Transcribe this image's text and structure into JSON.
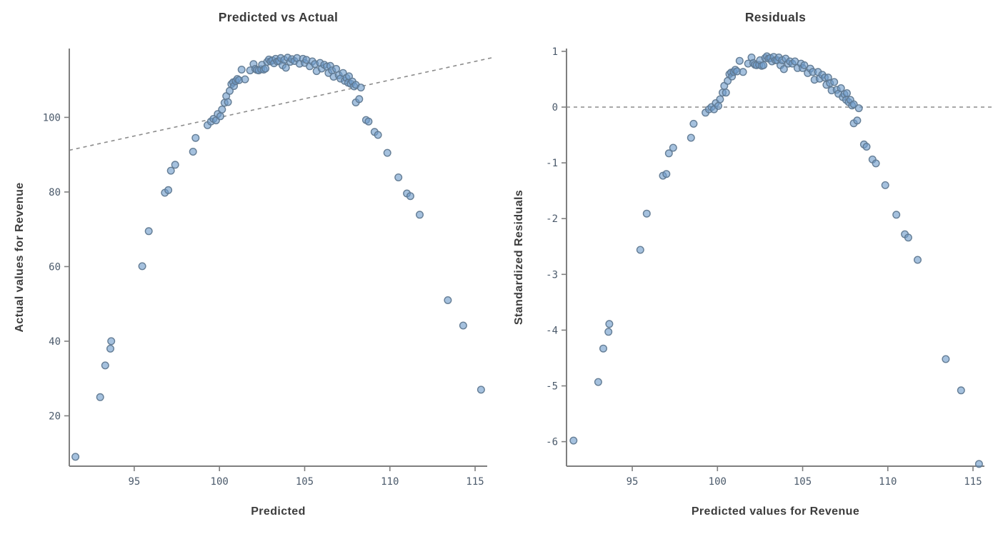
{
  "style": {
    "background": "#ffffff",
    "axis_color": "#7f7f7f",
    "tick_color": "#7f7f7f",
    "ref_line_color": "#8c8c8c",
    "point_fill": "#6d9bc9",
    "point_stroke": "#5f7890",
    "title_color": "#3a3a3a",
    "axis_label_color": "#3d3d3d",
    "tick_label_color": "#4b5a6b"
  },
  "chart_data": [
    {
      "type": "scatter",
      "title": "Predicted vs Actual",
      "xlabel": "Predicted",
      "ylabel": "Actual values for Revenue",
      "x_ticks": [
        95,
        100,
        105,
        110,
        115
      ],
      "y_ticks": [
        20,
        40,
        60,
        80,
        100
      ],
      "xlim": [
        91.19,
        115.71
      ],
      "ylim": [
        6.5,
        118.45
      ],
      "grid": "off",
      "reference_line": {
        "kind": "identity",
        "style": "dashed"
      },
      "points": [
        [
          91.55,
          9.0
        ],
        [
          93.0,
          25.0
        ],
        [
          93.3,
          33.5
        ],
        [
          93.6,
          38.0
        ],
        [
          93.65,
          40.0
        ],
        [
          95.47,
          60.1
        ],
        [
          95.85,
          69.5
        ],
        [
          96.8,
          79.8
        ],
        [
          97.0,
          80.5
        ],
        [
          97.15,
          85.7
        ],
        [
          97.4,
          87.3
        ],
        [
          98.45,
          90.8
        ],
        [
          98.6,
          94.5
        ],
        [
          99.3,
          97.9
        ],
        [
          99.5,
          98.9
        ],
        [
          99.65,
          99.6
        ],
        [
          99.8,
          99.2
        ],
        [
          99.9,
          100.9
        ],
        [
          100.05,
          100.3
        ],
        [
          100.15,
          102.1
        ],
        [
          100.3,
          103.9
        ],
        [
          100.4,
          105.7
        ],
        [
          100.5,
          104.1
        ],
        [
          100.6,
          107.1
        ],
        [
          100.7,
          108.9
        ],
        [
          100.8,
          109.4
        ],
        [
          100.85,
          108.4
        ],
        [
          100.95,
          109.7
        ],
        [
          101.05,
          110.3
        ],
        [
          101.15,
          110.0
        ],
        [
          101.3,
          112.8
        ],
        [
          101.5,
          110.2
        ],
        [
          101.8,
          112.6
        ],
        [
          102.0,
          114.3
        ],
        [
          102.1,
          113.0
        ],
        [
          102.2,
          112.7
        ],
        [
          102.3,
          112.6
        ],
        [
          102.45,
          112.9
        ],
        [
          102.5,
          114.1
        ],
        [
          102.6,
          112.8
        ],
        [
          102.7,
          113.1
        ],
        [
          102.8,
          114.9
        ],
        [
          102.9,
          115.5
        ],
        [
          103.0,
          115.0
        ],
        [
          103.1,
          115.3
        ],
        [
          103.2,
          114.5
        ],
        [
          103.3,
          115.7
        ],
        [
          103.4,
          115.0
        ],
        [
          103.5,
          115.1
        ],
        [
          103.6,
          115.9
        ],
        [
          103.7,
          114.0
        ],
        [
          103.8,
          115.4
        ],
        [
          103.9,
          113.3
        ],
        [
          104.0,
          116.0
        ],
        [
          104.15,
          114.9
        ],
        [
          104.25,
          115.6
        ],
        [
          104.4,
          115.1
        ],
        [
          104.55,
          115.9
        ],
        [
          104.7,
          114.4
        ],
        [
          104.9,
          115.7
        ],
        [
          105.0,
          114.6
        ],
        [
          105.1,
          115.4
        ],
        [
          105.3,
          113.7
        ],
        [
          105.45,
          115.0
        ],
        [
          105.6,
          114.3
        ],
        [
          105.7,
          112.4
        ],
        [
          105.9,
          114.6
        ],
        [
          106.0,
          113.1
        ],
        [
          106.15,
          114.1
        ],
        [
          106.3,
          113.6
        ],
        [
          106.4,
          111.9
        ],
        [
          106.5,
          113.8
        ],
        [
          106.6,
          112.6
        ],
        [
          106.7,
          110.9
        ],
        [
          106.85,
          113.0
        ],
        [
          107.0,
          111.3
        ],
        [
          107.1,
          110.4
        ],
        [
          107.25,
          111.9
        ],
        [
          107.35,
          109.8
        ],
        [
          107.45,
          110.6
        ],
        [
          107.55,
          109.3
        ],
        [
          107.6,
          111.0
        ],
        [
          107.7,
          109.0
        ],
        [
          107.8,
          109.6
        ],
        [
          107.9,
          108.3
        ],
        [
          108.0,
          108.7
        ],
        [
          108.3,
          108.0
        ],
        [
          108.0,
          104.0
        ],
        [
          108.2,
          104.9
        ],
        [
          108.6,
          99.3
        ],
        [
          108.75,
          98.9
        ],
        [
          109.1,
          96.1
        ],
        [
          109.3,
          95.3
        ],
        [
          109.85,
          90.5
        ],
        [
          110.5,
          83.9
        ],
        [
          111.0,
          79.6
        ],
        [
          111.2,
          78.9
        ],
        [
          111.75,
          73.9
        ],
        [
          113.4,
          51.0
        ],
        [
          114.3,
          44.2
        ],
        [
          115.35,
          27.0
        ]
      ]
    },
    {
      "type": "scatter",
      "title": "Residuals",
      "xlabel": "Predicted values for Revenue",
      "ylabel": "Standardized Residuals",
      "x_ticks": [
        95,
        100,
        105,
        110,
        115
      ],
      "y_ticks": [
        1,
        0,
        -1,
        -2,
        -3,
        -4,
        -5,
        -6
      ],
      "xlim": [
        91.14,
        115.67
      ],
      "ylim": [
        -6.44,
        1.05
      ],
      "grid": "off",
      "reference_line": {
        "kind": "horizontal",
        "y": 0,
        "style": "dashed"
      },
      "points": [
        [
          91.55,
          -5.98
        ],
        [
          93.0,
          -4.93
        ],
        [
          93.3,
          -4.33
        ],
        [
          93.6,
          -4.03
        ],
        [
          93.65,
          -3.89
        ],
        [
          95.47,
          -2.56
        ],
        [
          95.85,
          -1.91
        ],
        [
          96.8,
          -1.23
        ],
        [
          97.0,
          -1.2
        ],
        [
          97.15,
          -0.83
        ],
        [
          97.4,
          -0.73
        ],
        [
          98.45,
          -0.55
        ],
        [
          98.6,
          -0.3
        ],
        [
          99.3,
          -0.1
        ],
        [
          99.5,
          -0.04
        ],
        [
          99.65,
          0.0
        ],
        [
          99.8,
          -0.04
        ],
        [
          99.9,
          0.07
        ],
        [
          100.05,
          0.02
        ],
        [
          100.15,
          0.14
        ],
        [
          100.3,
          0.26
        ],
        [
          100.4,
          0.38
        ],
        [
          100.5,
          0.26
        ],
        [
          100.6,
          0.47
        ],
        [
          100.7,
          0.59
        ],
        [
          100.8,
          0.62
        ],
        [
          100.85,
          0.55
        ],
        [
          100.95,
          0.63
        ],
        [
          101.05,
          0.67
        ],
        [
          101.15,
          0.64
        ],
        [
          101.3,
          0.83
        ],
        [
          101.5,
          0.63
        ],
        [
          101.8,
          0.78
        ],
        [
          102.0,
          0.89
        ],
        [
          102.1,
          0.79
        ],
        [
          102.2,
          0.76
        ],
        [
          102.3,
          0.75
        ],
        [
          102.45,
          0.76
        ],
        [
          102.5,
          0.84
        ],
        [
          102.6,
          0.74
        ],
        [
          102.7,
          0.75
        ],
        [
          102.8,
          0.88
        ],
        [
          102.9,
          0.91
        ],
        [
          103.0,
          0.87
        ],
        [
          103.1,
          0.88
        ],
        [
          103.2,
          0.82
        ],
        [
          103.3,
          0.9
        ],
        [
          103.4,
          0.84
        ],
        [
          103.5,
          0.84
        ],
        [
          103.6,
          0.89
        ],
        [
          103.7,
          0.75
        ],
        [
          103.8,
          0.84
        ],
        [
          103.9,
          0.68
        ],
        [
          104.0,
          0.87
        ],
        [
          104.15,
          0.78
        ],
        [
          104.25,
          0.82
        ],
        [
          104.4,
          0.78
        ],
        [
          104.55,
          0.82
        ],
        [
          104.7,
          0.7
        ],
        [
          104.9,
          0.78
        ],
        [
          105.0,
          0.7
        ],
        [
          105.1,
          0.75
        ],
        [
          105.3,
          0.61
        ],
        [
          105.45,
          0.69
        ],
        [
          105.6,
          0.63
        ],
        [
          105.7,
          0.49
        ],
        [
          105.9,
          0.63
        ],
        [
          106.0,
          0.51
        ],
        [
          106.15,
          0.58
        ],
        [
          106.3,
          0.53
        ],
        [
          106.4,
          0.4
        ],
        [
          106.5,
          0.53
        ],
        [
          106.6,
          0.43
        ],
        [
          106.7,
          0.3
        ],
        [
          106.85,
          0.45
        ],
        [
          107.0,
          0.31
        ],
        [
          107.1,
          0.24
        ],
        [
          107.25,
          0.34
        ],
        [
          107.35,
          0.18
        ],
        [
          107.45,
          0.23
        ],
        [
          107.55,
          0.13
        ],
        [
          107.6,
          0.25
        ],
        [
          107.7,
          0.09
        ],
        [
          107.8,
          0.13
        ],
        [
          107.9,
          0.03
        ],
        [
          108.0,
          0.05
        ],
        [
          108.3,
          -0.02
        ],
        [
          108.0,
          -0.29
        ],
        [
          108.2,
          -0.24
        ],
        [
          108.6,
          -0.67
        ],
        [
          108.75,
          -0.71
        ],
        [
          109.1,
          -0.94
        ],
        [
          109.3,
          -1.01
        ],
        [
          109.85,
          -1.4
        ],
        [
          110.5,
          -1.93
        ],
        [
          111.0,
          -2.28
        ],
        [
          111.2,
          -2.34
        ],
        [
          111.75,
          -2.74
        ],
        [
          113.4,
          -4.52
        ],
        [
          114.3,
          -5.08
        ],
        [
          115.35,
          -6.4
        ]
      ]
    }
  ]
}
